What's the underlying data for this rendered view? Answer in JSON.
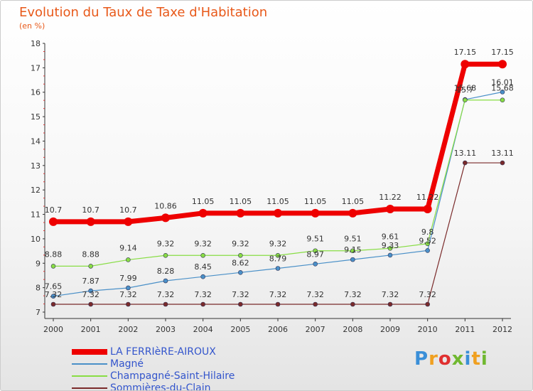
{
  "chart_data": {
    "type": "line",
    "title": "Evolution du Taux de Taxe d'Habitation",
    "unit_label": "(en %)",
    "xlabel": "",
    "ylabel": "",
    "x": [
      "2000",
      "2001",
      "2002",
      "2003",
      "2004",
      "2005",
      "2006",
      "2007",
      "2008",
      "2009",
      "2010",
      "2011",
      "2012"
    ],
    "ylim": [
      7,
      18
    ],
    "yticks": [
      7,
      8,
      9,
      10,
      11,
      12,
      13,
      14,
      15,
      16,
      17,
      18
    ],
    "grid": false,
    "legend_position": "bottom-left",
    "series": [
      {
        "name": "LA FERRIèRE-AIROUX",
        "color": "#ee0000",
        "values": [
          10.7,
          10.7,
          10.7,
          10.86,
          11.05,
          11.05,
          11.05,
          11.05,
          11.05,
          11.22,
          11.22,
          17.15,
          17.15
        ],
        "labels": [
          "10.7",
          "10.7",
          "10.7",
          "10.86",
          "11.05",
          "11.05",
          "11.05",
          "11.05",
          "11.05",
          "11.22",
          "11.22",
          "17.15",
          "17.15"
        ]
      },
      {
        "name": "Magné",
        "color": "#4a90c8",
        "values": [
          7.65,
          7.87,
          7.99,
          8.28,
          8.45,
          8.62,
          8.79,
          8.97,
          9.15,
          9.33,
          9.52,
          15.7,
          16.01
        ],
        "labels": [
          "7.65",
          "7.87",
          "7.99",
          "8.28",
          "8.45",
          "8.62",
          "8.79",
          "8.97",
          "9.15",
          "9.33",
          "9.52",
          "15.7",
          "16.01"
        ]
      },
      {
        "name": "Champagné-Saint-Hilaire",
        "color": "#88dd44",
        "values": [
          8.88,
          8.88,
          9.14,
          9.32,
          9.32,
          9.32,
          9.32,
          9.51,
          9.51,
          9.61,
          9.8,
          15.68,
          15.68
        ],
        "labels": [
          "8.88",
          "8.88",
          "9.14",
          "9.32",
          "9.32",
          "9.32",
          "9.32",
          "9.51",
          "9.51",
          "9.61",
          "9.8",
          "15.68",
          "15.68"
        ]
      },
      {
        "name": "Sommières-du-Clain",
        "color": "#7a2a2a",
        "values": [
          7.32,
          7.32,
          7.32,
          7.32,
          7.32,
          7.32,
          7.32,
          7.32,
          7.32,
          7.32,
          7.32,
          13.11,
          13.11
        ],
        "labels": [
          "7.32",
          "7.32",
          "7.32",
          "7.32",
          "7.32",
          "7.32",
          "7.32",
          "7.32",
          "7.32",
          "7.32",
          "7.32",
          "13.11",
          "13.11"
        ]
      }
    ]
  },
  "logo": {
    "letters": [
      "P",
      "r",
      "o",
      "x",
      "i",
      "t",
      "i"
    ],
    "colors": [
      "#3a8fd8",
      "#f0a020",
      "#e03030",
      "#70b830",
      "#3a8fd8",
      "#f0a020",
      "#70b830"
    ]
  }
}
